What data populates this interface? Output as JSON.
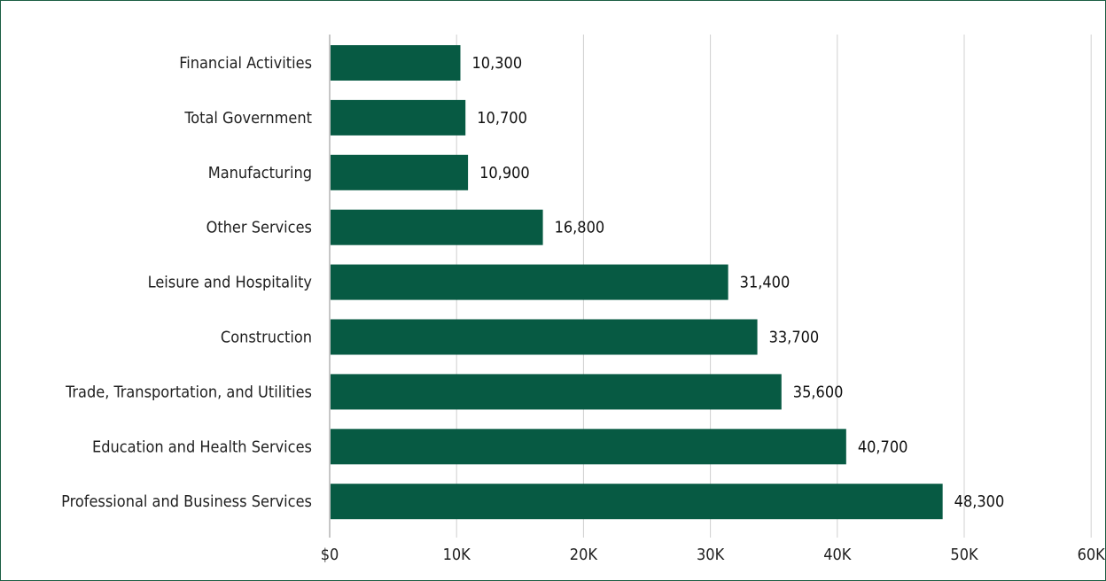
{
  "chart_data": {
    "type": "bar",
    "orientation": "horizontal",
    "title": "",
    "xlabel": "",
    "ylabel": "",
    "categories": [
      "Financial Activities",
      "Total Government",
      "Manufacturing",
      "Other Services",
      "Leisure and Hospitality",
      "Construction",
      "Trade, Transportation, and Utilities",
      "Education and Health Services",
      "Professional and Business Services"
    ],
    "values": [
      10300,
      10700,
      10900,
      16800,
      31400,
      33700,
      35600,
      40700,
      48300
    ],
    "value_labels": [
      "10,300",
      "10,700",
      "10,900",
      "16,800",
      "31,400",
      "33,700",
      "35,600",
      "40,700",
      "48,300"
    ],
    "xlim": [
      0,
      60000
    ],
    "xticks": [
      0,
      10000,
      20000,
      30000,
      40000,
      50000,
      60000
    ],
    "xtick_labels": [
      "$0",
      "10K",
      "20K",
      "30K",
      "40K",
      "50K",
      "60K"
    ],
    "grid": "vertical",
    "bar_color": "#075a43",
    "grid_color": "#d0d0d0",
    "border_color": "#1b5e43"
  }
}
